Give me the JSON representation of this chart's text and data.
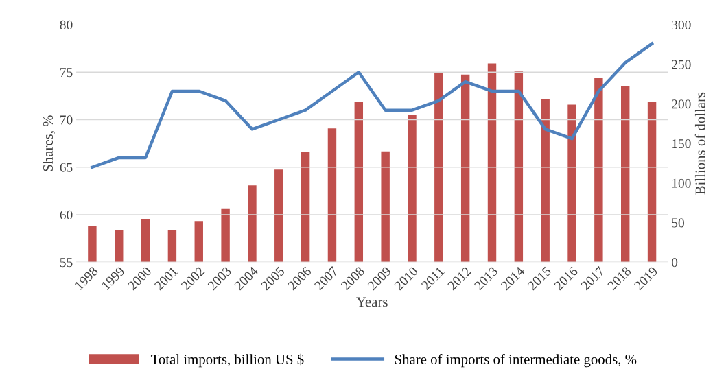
{
  "chart_data": {
    "type": "bar",
    "xlabel": "Years",
    "ylabel": "Shares, %",
    "y2label": "Billions of dollars",
    "categories": [
      "1998",
      "1999",
      "2000",
      "2001",
      "2002",
      "2003",
      "2004",
      "2005",
      "2006",
      "2007",
      "2008",
      "2009",
      "2010",
      "2011",
      "2012",
      "2013",
      "2014",
      "2015",
      "2016",
      "2017",
      "2018",
      "2019"
    ],
    "series": [
      {
        "name": "Total imports, billion US $",
        "axis": "y2",
        "color": "#c0504d",
        "values": [
          46,
          41,
          54,
          41,
          52,
          68,
          97,
          117,
          139,
          169,
          202,
          140,
          186,
          240,
          237,
          251,
          241,
          206,
          199,
          233,
          222,
          203
        ]
      },
      {
        "name": "Share of imports of intermediate goods, %",
        "type": "line",
        "axis": "y",
        "color": "#4f81bd",
        "values": [
          65,
          66,
          66,
          73,
          73,
          72,
          69,
          70,
          71,
          73,
          75,
          71,
          71,
          72,
          74,
          73,
          73,
          69,
          68,
          73,
          76,
          78
        ]
      }
    ],
    "ylim": [
      55,
      80
    ],
    "yticks": [
      55,
      60,
      65,
      70,
      75,
      80
    ],
    "y2lim": [
      0,
      300
    ],
    "y2ticks": [
      0,
      50,
      100,
      150,
      200,
      250,
      300
    ],
    "grid": "y",
    "legend": "bottom",
    "marker": "none",
    "line_style": "solid"
  }
}
